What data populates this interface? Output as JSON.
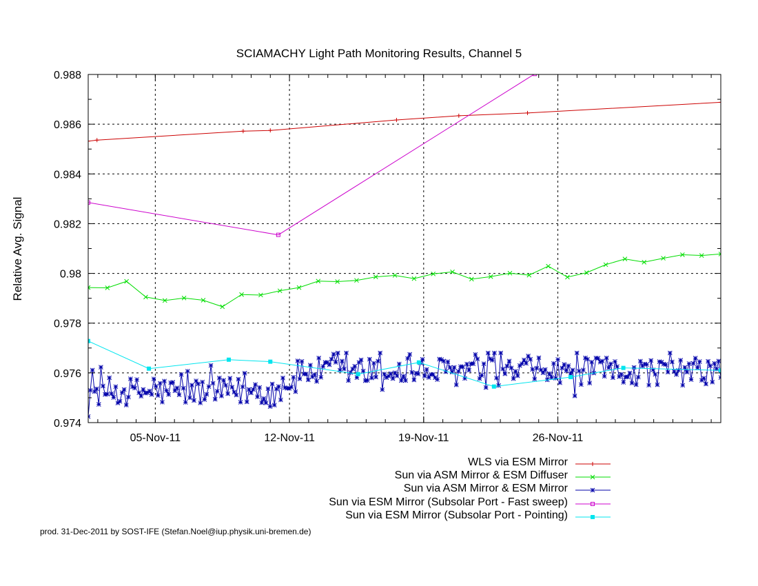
{
  "footer": "prod. 31-Dec-2011 by SOST-IFE (Stefan.Noel@iup.physik.uni-bremen.de)",
  "chart_data": {
    "type": "line",
    "title": "SCIAMACHY Light Path Monitoring Results, Channel 5",
    "xlabel": "",
    "ylabel": "Relative Avg. Signal",
    "x_type": "date",
    "xlim": [
      "2011-11-01T12:00",
      "2011-12-04T12:00"
    ],
    "ylim": [
      0.974,
      0.988
    ],
    "yticks": [
      0.974,
      0.976,
      0.978,
      0.98,
      0.982,
      0.984,
      0.986,
      0.988
    ],
    "ytick_labels": [
      "0.974",
      "0.976",
      "0.978",
      "0.98",
      "0.982",
      "0.984",
      "0.986",
      "0.988"
    ],
    "xticks": [
      "2011-11-05",
      "2011-11-12",
      "2011-11-19",
      "2011-11-26"
    ],
    "xtick_labels": [
      "05-Nov-11",
      "12-Nov-11",
      "19-Nov-11",
      "26-Nov-11"
    ],
    "grid": true,
    "legend_position": "bottom-right",
    "series": [
      {
        "name": "WLS via ESM Mirror",
        "color": "#cc0000",
        "marker": "plus",
        "x": [
          "2011-11-01T12:00",
          "2011-11-01T23:00",
          "2011-11-09T14:00",
          "2011-11-11T00:00",
          "2011-11-17T14:00",
          "2011-11-20T20:00",
          "2011-11-24T10:00",
          "2011-12-04T12:00"
        ],
        "y": [
          0.98532,
          0.98536,
          0.98572,
          0.98575,
          0.98617,
          0.98634,
          0.98645,
          0.98688
        ]
      },
      {
        "name": "Sun via ASM Mirror & ESM Diffuser",
        "color": "#00dd00",
        "marker": "x",
        "x": [
          "2011-11-01T12:00",
          "2011-11-02T12:00",
          "2011-11-03T12:00",
          "2011-11-04T12:00",
          "2011-11-05T12:00",
          "2011-11-06T12:00",
          "2011-11-07T12:00",
          "2011-11-08T12:00",
          "2011-11-09T12:00",
          "2011-11-10T12:00",
          "2011-11-11T12:00",
          "2011-11-12T12:00",
          "2011-11-13T12:00",
          "2011-11-14T12:00",
          "2011-11-15T12:00",
          "2011-11-16T12:00",
          "2011-11-17T12:00",
          "2011-11-18T12:00",
          "2011-11-19T12:00",
          "2011-11-20T12:00",
          "2011-11-21T12:00",
          "2011-11-22T12:00",
          "2011-11-23T12:00",
          "2011-11-24T12:00",
          "2011-11-25T12:00",
          "2011-11-26T12:00",
          "2011-11-27T12:00",
          "2011-11-28T12:00",
          "2011-11-29T12:00",
          "2011-11-30T12:00",
          "2011-12-01T12:00",
          "2011-12-02T12:00",
          "2011-12-03T12:00",
          "2011-12-04T12:00"
        ],
        "y": [
          0.97943,
          0.97942,
          0.97968,
          0.97905,
          0.97891,
          0.97901,
          0.97892,
          0.97866,
          0.97915,
          0.97913,
          0.9793,
          0.97943,
          0.97969,
          0.97967,
          0.97972,
          0.97986,
          0.97992,
          0.97979,
          0.97998,
          0.98006,
          0.97977,
          0.97987,
          0.98001,
          0.97993,
          0.98029,
          0.97985,
          0.98003,
          0.98035,
          0.98058,
          0.98045,
          0.98061,
          0.98075,
          0.98072,
          0.98078
        ]
      },
      {
        "name": "Sun via ASM Mirror & ESM Mirror",
        "color": "#0000aa",
        "marker": "star",
        "x_range": [
          "2011-11-01T12:00",
          "2011-12-04T12:00"
        ],
        "points": 300,
        "segments": [
          {
            "from": "2011-11-01T12:00",
            "to": "2011-11-11T12:00",
            "mean_y": 0.97525,
            "spread": 0.0007
          },
          {
            "from": "2011-11-11T12:00",
            "to": "2011-11-12T12:00",
            "mean_y": 0.9756,
            "spread": 0.0006
          },
          {
            "from": "2011-11-12T12:00",
            "to": "2011-12-04T12:00",
            "mean_y": 0.97605,
            "spread": 0.0007
          }
        ],
        "ylim_observed": [
          0.9741,
          0.9768
        ]
      },
      {
        "name": "Sun via ESM Mirror (Subsolar Port - Fast sweep)",
        "color": "#cc00cc",
        "marker": "square-open",
        "x": [
          "2011-11-01T12:00",
          "2011-11-11T10:00",
          "2011-11-24T19:00"
        ],
        "y": [
          0.98285,
          0.98155,
          0.98802
        ]
      },
      {
        "name": "Sun via ESM Mirror (Subsolar Port - Pointing)",
        "color": "#00e5ee",
        "marker": "square-filled",
        "x": [
          "2011-11-01T12:00",
          "2011-11-04T16:00",
          "2011-11-08T20:00",
          "2011-11-11T00:00",
          "2011-11-15T14:00",
          "2011-11-18T18:00",
          "2011-11-22T16:00",
          "2011-11-26T16:00",
          "2011-11-29T10:00",
          "2011-12-04T12:00"
        ],
        "y": [
          0.97728,
          0.97617,
          0.97653,
          0.97645,
          0.97595,
          0.97642,
          0.97545,
          0.97583,
          0.9762,
          0.9761
        ]
      }
    ]
  }
}
